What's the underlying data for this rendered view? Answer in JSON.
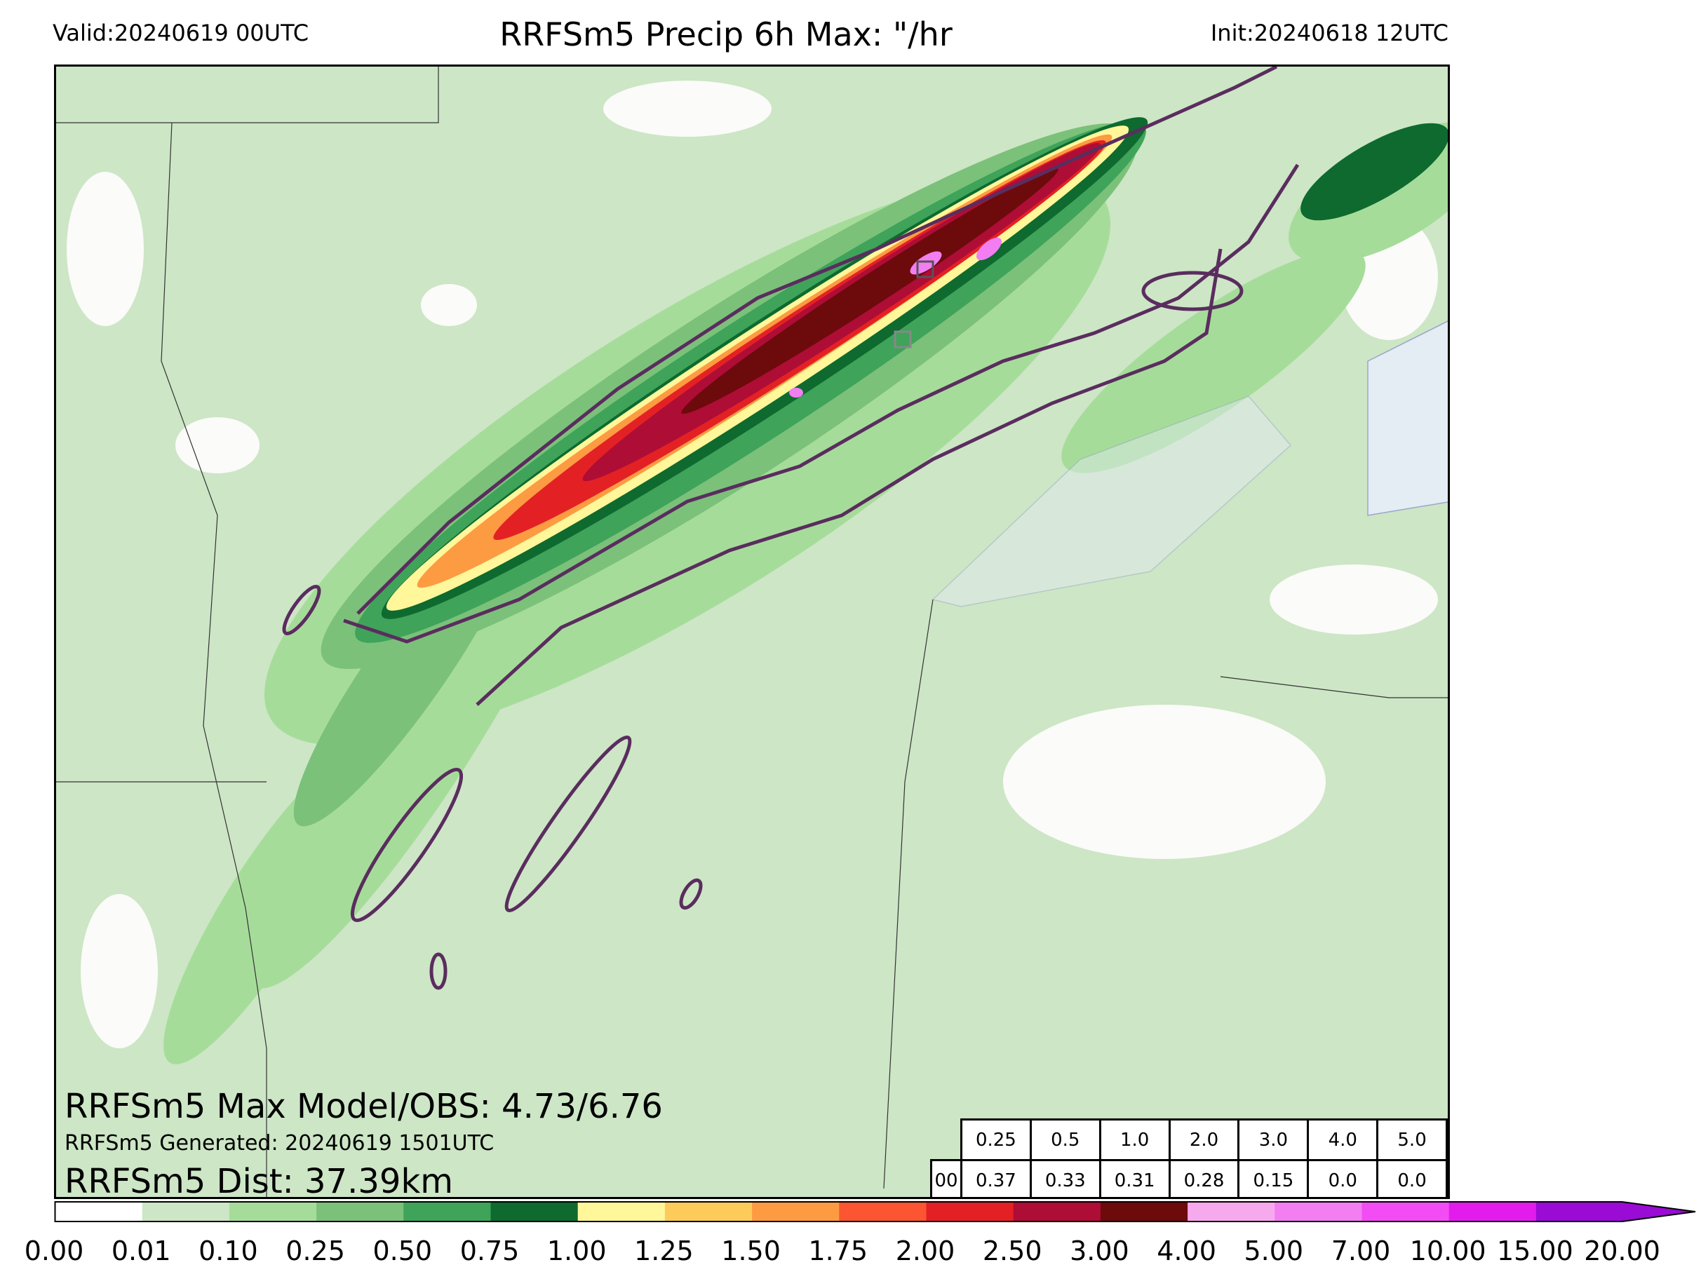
{
  "header": {
    "valid": "Valid:20240619 00UTC",
    "title": "RRFSm5 Precip 6h Max: \"/hr",
    "init": "Init:20240618 12UTC"
  },
  "overlay": {
    "max_line": "RRFSm5 Max Model/OBS: 4.73/6.76",
    "generated": "RRFSm5 Generated: 20240619 1501UTC",
    "dist": "RRFSm5 Dist: 37.39km"
  },
  "stats_table": {
    "row_label": "00",
    "thresholds": [
      "0.25",
      "0.5",
      "1.0",
      "2.0",
      "3.0",
      "4.0",
      "5.0"
    ],
    "values": [
      "0.37",
      "0.33",
      "0.31",
      "0.28",
      "0.15",
      "0.0",
      "0.0"
    ]
  },
  "colorbar": {
    "labels": [
      "0.00",
      "0.01",
      "0.10",
      "0.25",
      "0.50",
      "0.75",
      "1.00",
      "1.25",
      "1.50",
      "1.75",
      "2.00",
      "2.50",
      "3.00",
      "4.00",
      "5.00",
      "7.00",
      "10.00",
      "15.00",
      "20.00"
    ],
    "colors": [
      "#ffffff",
      "#cde6c6",
      "#a6dc9a",
      "#7bc17a",
      "#3fa35a",
      "#0e6a2f",
      "#fff79a",
      "#fdcb59",
      "#fd9b43",
      "#fb5532",
      "#e32124",
      "#ae0d36",
      "#6d0a0c",
      "#f7a9ee",
      "#f27ef2",
      "#f34cf4",
      "#e21ced",
      "#9a0bd5"
    ]
  },
  "map": {
    "colors": {
      "background": "#cde6c6",
      "dry": "#fbfbf9",
      "light": "#a6dc9a",
      "mod": "#7bc17a",
      "green": "#3fa35a",
      "dkgreen": "#0e6a2f",
      "yellow": "#fff79a",
      "orange": "#fd9b43",
      "red": "#e32124",
      "crimson": "#ae0d36",
      "maroon": "#6d0a0c",
      "pink": "#f27ef2",
      "obs_contour": "#5a2d5e",
      "water": "#e4ecf4"
    }
  }
}
